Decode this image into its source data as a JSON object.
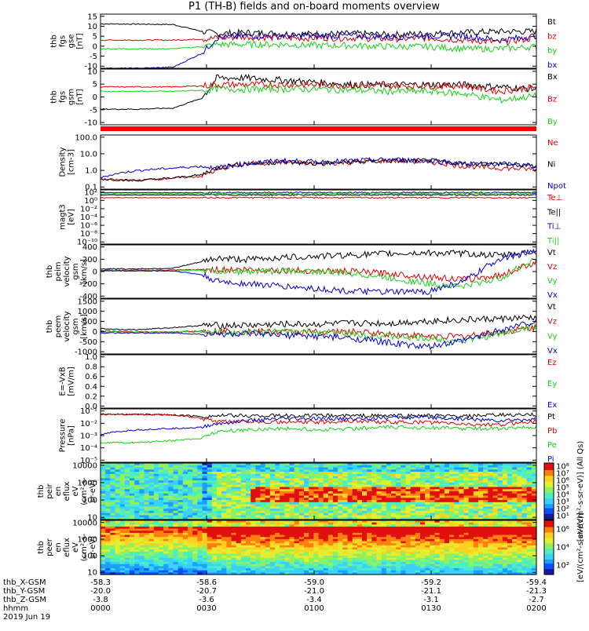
{
  "title": "P1 (TH-B) fields and on-board moments overview",
  "colors": {
    "black": "#000000",
    "red": "#e00000",
    "green": "#18d018",
    "blue": "#0000d0",
    "bar_red": "#ff0000"
  },
  "panels": [
    {
      "id": "fgs_gse",
      "ylabel_lines": [
        "thb",
        "fgs",
        "gse",
        "[nT]"
      ],
      "ylim": [
        -10,
        15
      ],
      "yticks": [
        "-10",
        "-5",
        "0",
        "5",
        "10",
        "15"
      ],
      "legend": [
        {
          "text": "Bt",
          "color": "black"
        },
        {
          "text": "bz",
          "color": "red"
        },
        {
          "text": "by",
          "color": "green"
        },
        {
          "text": "bx",
          "color": "blue"
        }
      ]
    },
    {
      "id": "fgs_gsm",
      "ylabel_lines": [
        "thb",
        "fgs",
        "gsm",
        "[nT]"
      ],
      "ylim": [
        -15,
        10
      ],
      "yticks": [
        "-10",
        "-5",
        "0",
        "5",
        "10"
      ],
      "legend": [
        {
          "text": "Bx",
          "color": "black"
        },
        {
          "text": "Bz",
          "color": "red"
        },
        {
          "text": "By",
          "color": "green"
        }
      ]
    },
    {
      "id": "density",
      "ylabel_lines": [
        "Density",
        "[cm-3]"
      ],
      "log": true,
      "yticks": [
        "0.1",
        "1.0",
        "10.0",
        "100.0"
      ],
      "legend": [
        {
          "text": "Ne",
          "color": "red"
        },
        {
          "text": "Ni",
          "color": "black"
        },
        {
          "text": "Npot",
          "color": "blue"
        }
      ]
    },
    {
      "id": "temperature",
      "ylabel_lines": [
        "magt3",
        "[eV]"
      ],
      "log": true,
      "yticks": [
        "10⁻¹⁰",
        "10⁻⁸",
        "10⁻⁶",
        "10⁻⁴",
        "10⁻²",
        "10⁰",
        "10²"
      ],
      "legend": [
        {
          "text": "Te⊥",
          "color": "red"
        },
        {
          "text": "Te||",
          "color": "black"
        },
        {
          "text": "Ti⊥",
          "color": "blue"
        },
        {
          "text": "Ti||",
          "color": "green"
        }
      ]
    },
    {
      "id": "peim_velocity",
      "ylabel_lines": [
        "thb",
        "peim",
        "velocity",
        "gsm",
        "[km/s]"
      ],
      "ylim": [
        -400,
        400
      ],
      "yticks": [
        "-400",
        "-200",
        "0",
        "200",
        "400"
      ],
      "legend": [
        {
          "text": "Vt",
          "color": "black"
        },
        {
          "text": "Vz",
          "color": "red"
        },
        {
          "text": "Vy",
          "color": "green"
        },
        {
          "text": "Vx",
          "color": "blue"
        }
      ]
    },
    {
      "id": "peem_velocity",
      "ylabel_lines": [
        "thb",
        "peem",
        "velocity",
        "gsm",
        "[km/s]"
      ],
      "ylim": [
        -1000,
        1500
      ],
      "yticks": [
        "-1000",
        "-500",
        "0",
        "500",
        "1000",
        "1500"
      ],
      "legend": [
        {
          "text": "Vt",
          "color": "black"
        },
        {
          "text": "Vz",
          "color": "red"
        },
        {
          "text": "Vy",
          "color": "green"
        },
        {
          "text": "Vx",
          "color": "blue"
        }
      ]
    },
    {
      "id": "efield",
      "ylabel_lines": [
        "E=-VxB",
        "[mV/m]"
      ],
      "ylim": [
        0,
        1
      ],
      "yticks": [
        "0.0",
        "0.2",
        "0.4",
        "0.6",
        "0.8",
        "1.0"
      ],
      "legend": [
        {
          "text": "Ez",
          "color": "red"
        },
        {
          "text": "Ey",
          "color": "green"
        },
        {
          "text": "Ex",
          "color": "blue"
        }
      ]
    },
    {
      "id": "pressure",
      "ylabel_lines": [
        "Pressure",
        "[nPa]"
      ],
      "log": true,
      "yticks": [
        "10⁻⁵",
        "10⁻⁴",
        "10⁻³",
        "10⁻²",
        "10⁻¹"
      ],
      "legend": [
        {
          "text": "Pt",
          "color": "black"
        },
        {
          "text": "Pb",
          "color": "red"
        },
        {
          "text": "Pe",
          "color": "green"
        },
        {
          "text": "Pi",
          "color": "blue"
        }
      ]
    },
    {
      "id": "peir_spec",
      "ylabel_lines": [
        "thb",
        "peir",
        "en",
        "eflux",
        "eV",
        "(cm²-s-",
        "sr-eV)"
      ],
      "log": true,
      "yticks": [
        "10",
        "100",
        "1000",
        "10000"
      ],
      "colorbar_ticks": [
        "10¹",
        "10²",
        "10³",
        "10⁴",
        "10⁵",
        "10⁶",
        "10⁷",
        "10⁸"
      ],
      "colorbar_label": "[eV/(cm²-s-sr-eV)] (All Qs)"
    },
    {
      "id": "peer_spec",
      "ylabel_lines": [
        "thb",
        "peer",
        "en",
        "eflux",
        "eV",
        "(cm²-s-",
        "sr-eV)"
      ],
      "log": true,
      "yticks": [
        "10",
        "100",
        "1000",
        "10000"
      ],
      "colorbar_ticks": [
        "10²",
        "10⁴",
        "10⁶"
      ],
      "colorbar_label": "[eV/(cm²-s-sr-eV)]"
    }
  ],
  "xaxis": {
    "row_labels": [
      "thb_X-GSM",
      "thb_Y-GSM",
      "thb_Z-GSM",
      "hhmm",
      "2019 Jun 19"
    ],
    "ticks": [
      {
        "x": "-58.3",
        "y": "-20.0",
        "z": "-3.8",
        "hhmm": "0000"
      },
      {
        "x": "-58.6",
        "y": "-20.7",
        "z": "-3.6",
        "hhmm": "0030"
      },
      {
        "x": "-59.0",
        "y": "-21.0",
        "z": "-3.4",
        "hhmm": "0100"
      },
      {
        "x": "-59.2",
        "y": "-21.1",
        "z": "-3.1",
        "hhmm": "0130"
      },
      {
        "x": "-59.4",
        "y": "-21.3",
        "z": "-2.7",
        "hhmm": "0200"
      }
    ]
  },
  "chart_data": [
    {
      "type": "line",
      "x": [
        0,
        10,
        20,
        28,
        32,
        40,
        50,
        60,
        70,
        80,
        90,
        100,
        110,
        120
      ],
      "series": [
        {
          "name": "Bt",
          "values": [
            10.5,
            10.4,
            10.2,
            7,
            6,
            6.5,
            6,
            5.8,
            6,
            5.5,
            6,
            6.5,
            7,
            7
          ]
        },
        {
          "name": "bz",
          "values": [
            3,
            3,
            3,
            3.5,
            4,
            4.5,
            4,
            4,
            4,
            3.5,
            4,
            3,
            2,
            4
          ]
        },
        {
          "name": "by",
          "values": [
            -1,
            -1,
            -1,
            0,
            1,
            1,
            1,
            0.5,
            0.5,
            0,
            0,
            -1,
            -1,
            0
          ]
        },
        {
          "name": "bx",
          "values": [
            -10,
            -10,
            -9.5,
            -3,
            4,
            5,
            5,
            5,
            5,
            4.5,
            5,
            5,
            3,
            5
          ]
        }
      ]
    },
    {
      "type": "line",
      "x": [
        0,
        10,
        20,
        28,
        32,
        40,
        50,
        60,
        70,
        80,
        90,
        100,
        110,
        120
      ],
      "series": [
        {
          "name": "Bx",
          "values": [
            -8,
            -8,
            -7.5,
            -3,
            6,
            6,
            5,
            4,
            3,
            3,
            3,
            3,
            2,
            1
          ]
        },
        {
          "name": "Bz",
          "values": [
            2,
            2,
            2,
            2.5,
            3,
            3,
            3,
            3,
            2.5,
            2.5,
            2.5,
            2.5,
            0,
            2
          ]
        },
        {
          "name": "By",
          "values": [
            0,
            0,
            0,
            0.5,
            1,
            1,
            1,
            1,
            0.5,
            0,
            0,
            -1,
            -4,
            -2
          ]
        }
      ]
    },
    {
      "type": "line",
      "log": true,
      "x": [
        0,
        10,
        20,
        28,
        32,
        40,
        50,
        60,
        70,
        80,
        90,
        100,
        110,
        120
      ],
      "series": [
        {
          "name": "Ne",
          "values": [
            0.25,
            0.2,
            0.3,
            0.4,
            1,
            3,
            4,
            3,
            4,
            5,
            4,
            2,
            1.5,
            1.2
          ]
        },
        {
          "name": "Ni",
          "values": [
            0.25,
            0.2,
            0.3,
            0.5,
            1.5,
            3,
            4,
            3,
            4,
            5,
            5,
            3,
            3,
            2
          ]
        },
        {
          "name": "Npot",
          "values": [
            0.3,
            1,
            1.5,
            2,
            1.5,
            3,
            5,
            4,
            5,
            6,
            5,
            3,
            3,
            2
          ]
        }
      ]
    },
    {
      "type": "line",
      "log": true,
      "x": [
        0,
        30,
        60,
        90,
        120
      ],
      "series": [
        {
          "name": "Te⊥",
          "values": [
            10,
            10,
            10,
            10,
            10
          ]
        },
        {
          "name": "Te||",
          "values": [
            50,
            50,
            50,
            50,
            50
          ]
        },
        {
          "name": "Ti⊥",
          "values": [
            200,
            200,
            200,
            200,
            200
          ]
        },
        {
          "name": "Ti||",
          "values": [
            100,
            100,
            100,
            100,
            100
          ]
        }
      ]
    },
    {
      "type": "line",
      "x": [
        0,
        10,
        20,
        28,
        32,
        40,
        50,
        60,
        70,
        80,
        90,
        100,
        110,
        120
      ],
      "series": [
        {
          "name": "Vt",
          "values": [
            40,
            40,
            50,
            150,
            200,
            180,
            210,
            230,
            250,
            270,
            280,
            270,
            240,
            300
          ]
        },
        {
          "name": "Vz",
          "values": [
            20,
            20,
            20,
            30,
            30,
            30,
            20,
            10,
            0,
            -30,
            -80,
            -120,
            -60,
            150
          ]
        },
        {
          "name": "Vy",
          "values": [
            10,
            10,
            10,
            20,
            0,
            0,
            10,
            0,
            -30,
            -100,
            -180,
            -220,
            -100,
            200
          ]
        },
        {
          "name": "Vx",
          "values": [
            10,
            10,
            10,
            -50,
            -150,
            -180,
            -220,
            -260,
            -300,
            -310,
            -300,
            -150,
            200,
            300
          ]
        }
      ]
    },
    {
      "type": "line",
      "x": [
        0,
        10,
        20,
        28,
        32,
        40,
        50,
        60,
        70,
        80,
        90,
        100,
        110,
        120
      ],
      "series": [
        {
          "name": "Vt",
          "values": [
            150,
            100,
            200,
            300,
            300,
            300,
            350,
            350,
            400,
            400,
            500,
            550,
            600,
            650
          ]
        },
        {
          "name": "Vz",
          "values": [
            50,
            0,
            0,
            50,
            30,
            20,
            0,
            0,
            0,
            -100,
            -200,
            -200,
            0,
            200
          ]
        },
        {
          "name": "Vy",
          "values": [
            0,
            0,
            0,
            0,
            0,
            0,
            0,
            0,
            -100,
            -200,
            -300,
            -400,
            -100,
            300
          ]
        },
        {
          "name": "Vx",
          "values": [
            -50,
            -50,
            -50,
            -100,
            -100,
            -100,
            -150,
            -200,
            -300,
            -500,
            -700,
            -400,
            100,
            500
          ]
        }
      ]
    },
    {
      "type": "line",
      "x": [
        0,
        120
      ],
      "series": []
    },
    {
      "type": "line",
      "log": true,
      "x": [
        0,
        10,
        20,
        28,
        32,
        40,
        50,
        60,
        70,
        80,
        90,
        100,
        110,
        120
      ],
      "series": [
        {
          "name": "Pt",
          "values": [
            0.08,
            0.08,
            0.07,
            0.05,
            0.06,
            0.06,
            0.06,
            0.06,
            0.06,
            0.06,
            0.06,
            0.05,
            0.07,
            0.07
          ]
        },
        {
          "name": "Pb",
          "values": [
            0.08,
            0.08,
            0.07,
            0.03,
            0.015,
            0.02,
            0.015,
            0.015,
            0.02,
            0.015,
            0.015,
            0.01,
            0.008,
            0.02
          ]
        },
        {
          "name": "Pe",
          "values": [
            0.0002,
            0.0002,
            0.0003,
            0.0005,
            0.002,
            0.003,
            0.004,
            0.003,
            0.004,
            0.005,
            0.005,
            0.004,
            0.004,
            0.005
          ]
        },
        {
          "name": "Pi",
          "values": [
            0.001,
            0.003,
            0.004,
            0.005,
            0.01,
            0.02,
            0.03,
            0.03,
            0.03,
            0.04,
            0.04,
            0.03,
            0.02,
            0.03
          ]
        }
      ]
    },
    {
      "type": "heatmap"
    },
    {
      "type": "heatmap"
    }
  ]
}
